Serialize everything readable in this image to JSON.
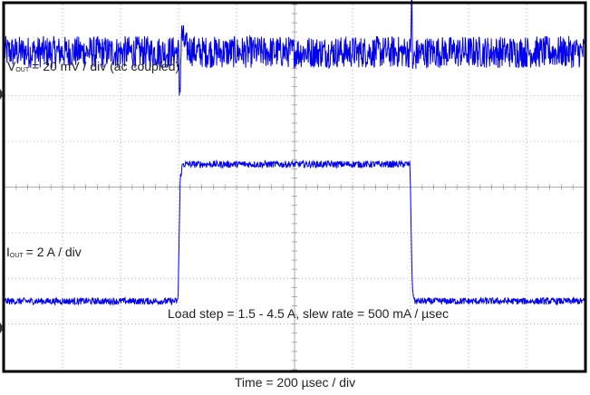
{
  "chart_data": [
    {
      "type": "line",
      "title": "",
      "label_prefix": "V",
      "label_sub": "OUT",
      "label_rest": "= 20 mV / div (ac coupled)",
      "units_per_div": 20,
      "unit": "mV",
      "xlim": [
        0,
        2000
      ],
      "ylim": [
        -40,
        40
      ],
      "series": [
        {
          "x": [
            0,
            600,
            603,
            606,
            610,
            625,
            660,
            1400,
            1404,
            1407,
            1410,
            1420,
            1460,
            2000
          ],
          "y": [
            0,
            0,
            -18,
            -12,
            8,
            2,
            0,
            0,
            30,
            -8,
            -4,
            -1,
            0,
            0
          ],
          "noise_pp": 14
        }
      ],
      "color": "#0000ee"
    },
    {
      "type": "line",
      "title": "",
      "label_prefix": "I",
      "label_sub": "OUT",
      "label_rest": "= 2 A / div",
      "units_per_div": 2,
      "unit": "A",
      "xlim": [
        0,
        2000
      ],
      "ylim": [
        0,
        8
      ],
      "series": [
        {
          "x": [
            0,
            598,
            606,
            614,
            1390,
            1398,
            1406,
            1414,
            2000
          ],
          "y": [
            1.5,
            1.5,
            4.2,
            4.5,
            4.5,
            4.5,
            1.8,
            1.5,
            1.5
          ],
          "noise_pp": 0.15
        }
      ],
      "color": "#0000ee"
    }
  ],
  "annotations": {
    "load_step": "Load step = 1.5 - 4.5 A, slew rate = 500 mA / µsec",
    "time_div": "Time = 200 µsec / div"
  },
  "grid": {
    "divisions_x": 10,
    "divisions_y": 8,
    "visible": true
  }
}
